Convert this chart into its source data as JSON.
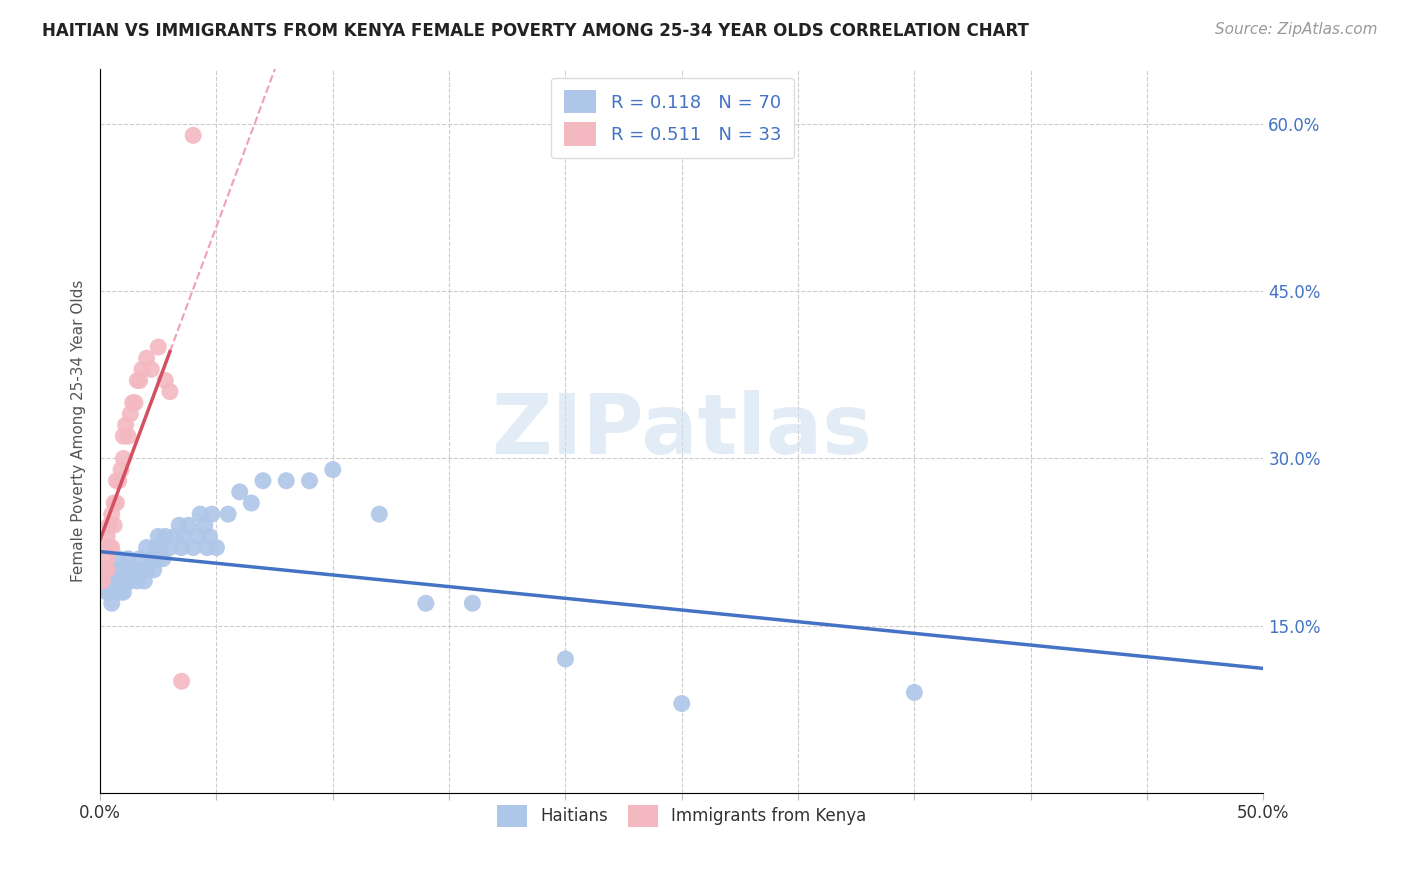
{
  "title": "HAITIAN VS IMMIGRANTS FROM KENYA FEMALE POVERTY AMONG 25-34 YEAR OLDS CORRELATION CHART",
  "source": "Source: ZipAtlas.com",
  "ylabel": "Female Poverty Among 25-34 Year Olds",
  "xlim": [
    0.0,
    0.5
  ],
  "ylim": [
    0.0,
    0.65
  ],
  "haitian_R": 0.118,
  "haitian_N": 70,
  "kenya_R": 0.511,
  "kenya_N": 33,
  "haitian_color": "#aec6e8",
  "kenya_color": "#f4b8c1",
  "haitian_line_color": "#4472c4",
  "kenya_line_color": "#d45060",
  "kenya_dash_color": "#f0a0b0",
  "watermark": "ZIPatlas",
  "legend_text_color": "#4472c4",
  "legend_N_color": "#e05060",
  "haitian_x": [
    0.001,
    0.002,
    0.003,
    0.003,
    0.004,
    0.004,
    0.004,
    0.005,
    0.005,
    0.006,
    0.006,
    0.007,
    0.007,
    0.008,
    0.008,
    0.008,
    0.009,
    0.009,
    0.01,
    0.01,
    0.01,
    0.011,
    0.011,
    0.012,
    0.012,
    0.013,
    0.013,
    0.014,
    0.015,
    0.016,
    0.017,
    0.018,
    0.019,
    0.02,
    0.02,
    0.022,
    0.023,
    0.024,
    0.025,
    0.025,
    0.026,
    0.027,
    0.028,
    0.03,
    0.032,
    0.034,
    0.035,
    0.036,
    0.038,
    0.04,
    0.042,
    0.043,
    0.045,
    0.046,
    0.047,
    0.048,
    0.05,
    0.055,
    0.06,
    0.065,
    0.07,
    0.08,
    0.09,
    0.1,
    0.12,
    0.14,
    0.16,
    0.2,
    0.25,
    0.35
  ],
  "haitian_y": [
    0.19,
    0.2,
    0.18,
    0.19,
    0.2,
    0.18,
    0.19,
    0.17,
    0.19,
    0.2,
    0.19,
    0.2,
    0.18,
    0.2,
    0.19,
    0.21,
    0.18,
    0.19,
    0.19,
    0.2,
    0.18,
    0.19,
    0.2,
    0.19,
    0.21,
    0.2,
    0.19,
    0.2,
    0.2,
    0.19,
    0.21,
    0.2,
    0.19,
    0.2,
    0.22,
    0.21,
    0.2,
    0.22,
    0.21,
    0.23,
    0.22,
    0.21,
    0.23,
    0.22,
    0.23,
    0.24,
    0.22,
    0.23,
    0.24,
    0.22,
    0.23,
    0.25,
    0.24,
    0.22,
    0.23,
    0.25,
    0.22,
    0.25,
    0.27,
    0.26,
    0.28,
    0.28,
    0.28,
    0.29,
    0.25,
    0.17,
    0.17,
    0.12,
    0.08,
    0.09
  ],
  "kenya_x": [
    0.001,
    0.002,
    0.002,
    0.003,
    0.003,
    0.003,
    0.004,
    0.004,
    0.005,
    0.005,
    0.006,
    0.006,
    0.007,
    0.007,
    0.008,
    0.009,
    0.01,
    0.01,
    0.011,
    0.012,
    0.013,
    0.014,
    0.015,
    0.016,
    0.017,
    0.018,
    0.02,
    0.022,
    0.025,
    0.028,
    0.03,
    0.035,
    0.04
  ],
  "kenya_y": [
    0.19,
    0.2,
    0.22,
    0.21,
    0.23,
    0.2,
    0.22,
    0.24,
    0.25,
    0.22,
    0.24,
    0.26,
    0.26,
    0.28,
    0.28,
    0.29,
    0.3,
    0.32,
    0.33,
    0.32,
    0.34,
    0.35,
    0.35,
    0.37,
    0.37,
    0.38,
    0.39,
    0.38,
    0.4,
    0.37,
    0.36,
    0.1,
    0.59
  ]
}
